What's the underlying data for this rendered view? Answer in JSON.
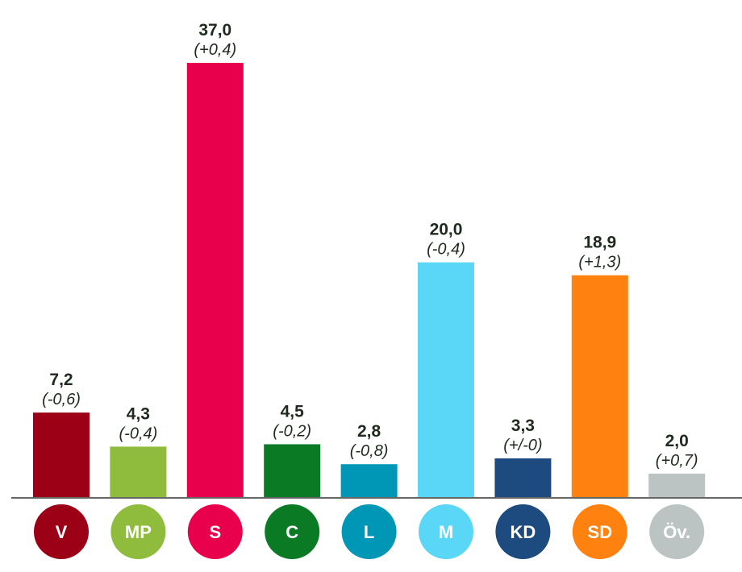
{
  "chart_data": {
    "type": "bar",
    "title": "",
    "xlabel": "",
    "ylabel": "",
    "ylim": [
      0,
      37
    ],
    "grid": false,
    "categories": [
      "V",
      "MP",
      "S",
      "C",
      "L",
      "M",
      "KD",
      "SD",
      "Öv."
    ],
    "values": [
      7.2,
      4.3,
      37.0,
      4.5,
      2.8,
      20.0,
      3.3,
      18.9,
      2.0
    ],
    "value_labels": [
      "7,2",
      "4,3",
      "37,0",
      "4,5",
      "2,8",
      "20,0",
      "3,3",
      "18,9",
      "2,0"
    ],
    "change_labels": [
      "(-0,6)",
      "(-0,4)",
      "(+0,4)",
      "(-0,2)",
      "(-0,8)",
      "(-0,4)",
      "(+/-0)",
      "(+1,3)",
      "(+0,7)"
    ],
    "colors": [
      "#9b0016",
      "#8fbc3c",
      "#e8004c",
      "#0a7a25",
      "#0096b6",
      "#5ad6f6",
      "#1d4b80",
      "#ff8210",
      "#bcc4c3"
    ]
  }
}
